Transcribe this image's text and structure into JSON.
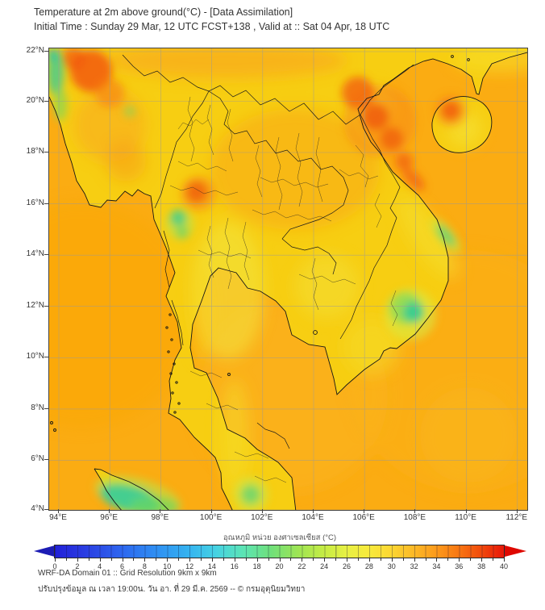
{
  "header": {
    "title": "Temperature at 2m above ground(°C) - [Data Assimilation]",
    "subtitle": "Initial Time : Sunday 29 Mar, 12 UTC FCST+138 , Valid at :: Sat 04 Apr, 18 UTC"
  },
  "map": {
    "lat_labels": [
      "22°N",
      "20°N",
      "18°N",
      "16°N",
      "14°N",
      "12°N",
      "10°N",
      "8°N",
      "6°N",
      "4°N"
    ],
    "lon_labels": [
      "94°E",
      "96°E",
      "98°E",
      "100°E",
      "102°E",
      "104°E",
      "106°E",
      "108°E",
      "110°E",
      "112°E"
    ]
  },
  "colorbar": {
    "label": "อุณหภูมิ หน่วย องศาเซลเซียส (°C)",
    "ticks": [
      "0",
      "2",
      "4",
      "6",
      "8",
      "10",
      "12",
      "14",
      "16",
      "18",
      "20",
      "22",
      "24",
      "26",
      "28",
      "30",
      "32",
      "34",
      "36",
      "38",
      "40"
    ]
  },
  "footer": {
    "line1": "WRF-DA Domain 01 :: Grid Resolution 9km x 9km",
    "line2": "ปรับปรุงข้อมูล ณ เวลา 19:00น. วัน อา. ที่ 29 มี.ค. 2569 -- © กรมอุตุนิยมวิทยา"
  },
  "chart_data": {
    "type": "heatmap",
    "title": "Temperature at 2m above ground(°C) - [Data Assimilation]",
    "subtitle": "Initial Time : Sunday 29 Mar, 12 UTC FCST+138 , Valid at :: Sat 04 Apr, 18 UTC",
    "xlabel_ticks_lon_east": [
      94,
      96,
      98,
      100,
      102,
      104,
      106,
      108,
      110,
      112
    ],
    "ylabel_ticks_lat_north": [
      22,
      20,
      18,
      16,
      14,
      12,
      10,
      8,
      6,
      4
    ],
    "x_range_lon_east": [
      93.6,
      112.4
    ],
    "y_range_lat_north": [
      4,
      22.1
    ],
    "grid": true,
    "colorbar": {
      "label": "อุณหภูมิ หน่วย องศาเซลเซียส (°C)",
      "min": 0,
      "max": 40,
      "tick_step": 2,
      "extend": "both"
    },
    "units": "°C",
    "field_summary": [
      {
        "region": "Bay of Bengal / Andaman Sea / Gulf of Thailand / South China Sea (open water)",
        "approx_temp_c": "30-32"
      },
      {
        "region": "Most land areas of Myanmar, Thailand, Laos, Cambodia, Vietnam (night-time)",
        "approx_temp_c": "28-30"
      },
      {
        "region": "Central Myanmar around 21-22N 95-96E (hot spot)",
        "approx_temp_c": "34-36"
      },
      {
        "region": "NW Vietnam valley band 18-21N 103-105E (hot band)",
        "approx_temp_c": "34-36"
      },
      {
        "region": "West-central Thailand near 16N 99.5E (hot spot)",
        "approx_temp_c": "34-35"
      },
      {
        "region": "NW Hainan near 19.5N 109.5E (hot spot)",
        "approx_temp_c": "34-35"
      },
      {
        "region": "Hills near 16N 98.8E Thai-Myanmar border (cool patch)",
        "approx_temp_c": "24-26"
      },
      {
        "region": "Annamite range near 16N 107.5E (cool streak)",
        "approx_temp_c": "25-27"
      },
      {
        "region": "South Vietnam highlands near 12N 108E (cool patch)",
        "approx_temp_c": "23-25"
      },
      {
        "region": "Southern Thailand / Malaysia highlands near 5.5N 101.5E (cool patch)",
        "approx_temp_c": "25-27"
      },
      {
        "region": "Northern Sumatra highlands near 4.5N 97E (cool patch)",
        "approx_temp_c": "22-25"
      },
      {
        "region": "NW map corner hills near 21.5N 93.7E (cool streak)",
        "approx_temp_c": "23-26"
      }
    ],
    "palette": {
      "cold": "#2121d8",
      "mid": "#6fe07c",
      "warm": "#fcd632",
      "hot": "#e81608",
      "sea_tone": "#fbac12",
      "land_tone": "#f7ce12"
    }
  }
}
